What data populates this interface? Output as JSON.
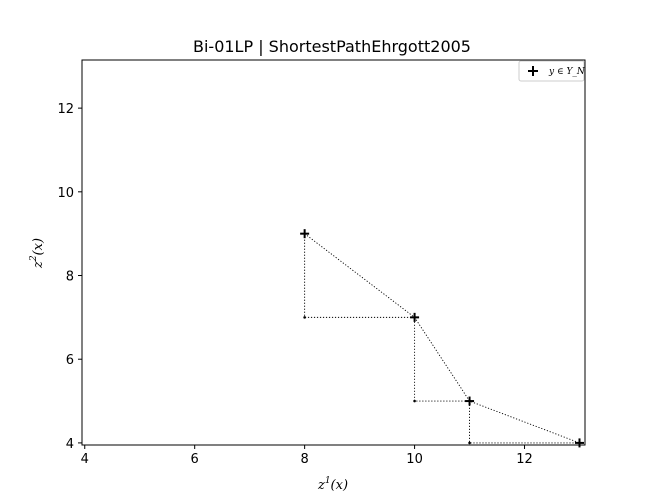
{
  "chart_data": {
    "type": "scatter",
    "title": "Bi-01LP | ShortestPathEhrgott2005",
    "xlabel_base": "z",
    "xlabel_sup": "1",
    "xlabel_tail": "(x)",
    "ylabel_base": "z",
    "ylabel_sup": "2",
    "ylabel_tail": "(x)",
    "xlim": [
      3.95,
      13.1
    ],
    "ylim": [
      3.95,
      13.15
    ],
    "xticks": [
      4,
      6,
      8,
      10,
      12
    ],
    "yticks": [
      4,
      6,
      8,
      10,
      12
    ],
    "grid": false,
    "legend_position": "top-right",
    "series": [
      {
        "name": "y ∈ Y_N",
        "marker": "plus",
        "color": "#000000",
        "points": [
          [
            8,
            9
          ],
          [
            10,
            7
          ],
          [
            11,
            5
          ],
          [
            13,
            4
          ]
        ]
      }
    ],
    "frontier_line": [
      [
        8,
        9
      ],
      [
        10,
        7
      ],
      [
        11,
        5
      ],
      [
        13,
        4
      ]
    ],
    "staircase": [
      [
        8,
        9
      ],
      [
        8,
        7
      ],
      [
        10,
        7
      ],
      [
        10,
        5
      ],
      [
        11,
        5
      ],
      [
        11,
        4
      ],
      [
        13,
        4
      ]
    ],
    "corner_points": [
      [
        8,
        7
      ],
      [
        10,
        5
      ],
      [
        11,
        4
      ]
    ]
  }
}
